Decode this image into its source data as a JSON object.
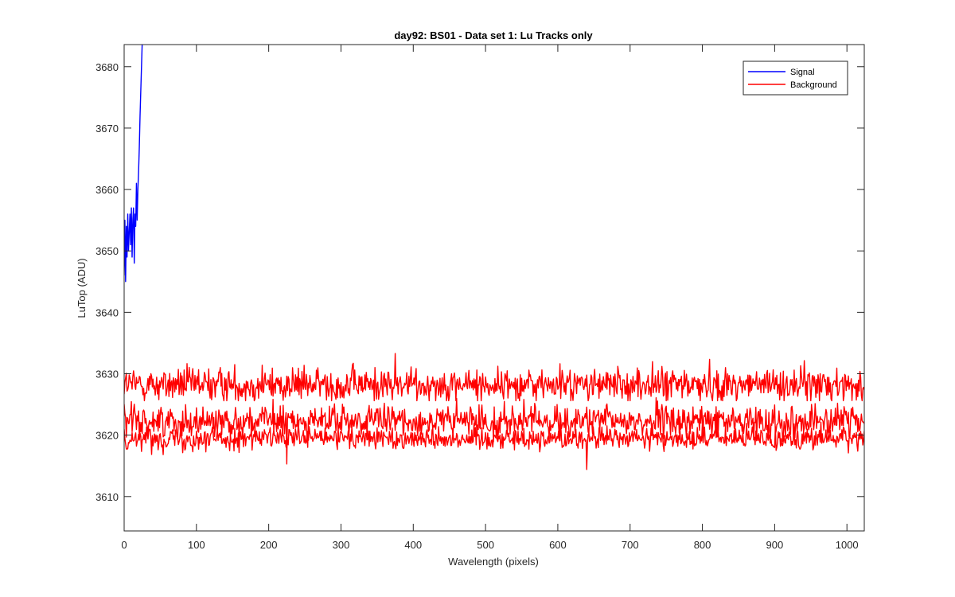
{
  "chart_data": {
    "type": "line",
    "title": "day92: BS01 - Data set 1: Lu Tracks only",
    "xlabel": "Wavelength (pixels)",
    "ylabel": "LuTop (ADU)",
    "xlim": [
      0,
      1024
    ],
    "ylim": [
      3604.4,
      3683.6
    ],
    "x_ticks": [
      0,
      100,
      200,
      300,
      400,
      500,
      600,
      700,
      800,
      900,
      1000
    ],
    "y_ticks": [
      3610,
      3620,
      3630,
      3640,
      3650,
      3660,
      3670,
      3680
    ],
    "grid": false,
    "legend": {
      "position": "top-right",
      "entries": [
        "Signal",
        "Background"
      ]
    },
    "colors": {
      "Signal": "#0000ff",
      "Background": "#ff0000",
      "axes": "#262626"
    },
    "series": [
      {
        "name": "Signal",
        "color": "#0000ff",
        "x": [
          0,
          1,
          2,
          3,
          4,
          5,
          6,
          7,
          8,
          9,
          10,
          11,
          12,
          13,
          14,
          15,
          16,
          17,
          18,
          19,
          20,
          21,
          22,
          23,
          24,
          25,
          26
        ],
        "values": [
          3646,
          3655,
          3645,
          3654,
          3649,
          3656,
          3650,
          3653,
          3656,
          3651,
          3657,
          3649,
          3655,
          3657,
          3648,
          3656,
          3654,
          3661,
          3655,
          3660,
          3663,
          3667,
          3672,
          3676,
          3680,
          3684,
          3688
        ]
      },
      {
        "name": "Background",
        "color": "#ff0000",
        "band_mean": 3628.2,
        "band_spread": 2.0,
        "band_min": 3624.4,
        "band_max": 3633.3,
        "x_range": [
          0,
          1024
        ]
      },
      {
        "name": "Background",
        "color": "#ff0000",
        "band_mean": 3622.3,
        "band_spread": 1.8,
        "band_min": 3615.3,
        "band_max": 3626.3,
        "x_range": [
          0,
          1024
        ]
      },
      {
        "name": "Background",
        "color": "#ff0000",
        "band_mean": 3619.5,
        "band_spread": 1.3,
        "band_min": 3614.4,
        "band_max": 3623.8,
        "x_range": [
          0,
          1024
        ]
      }
    ]
  }
}
